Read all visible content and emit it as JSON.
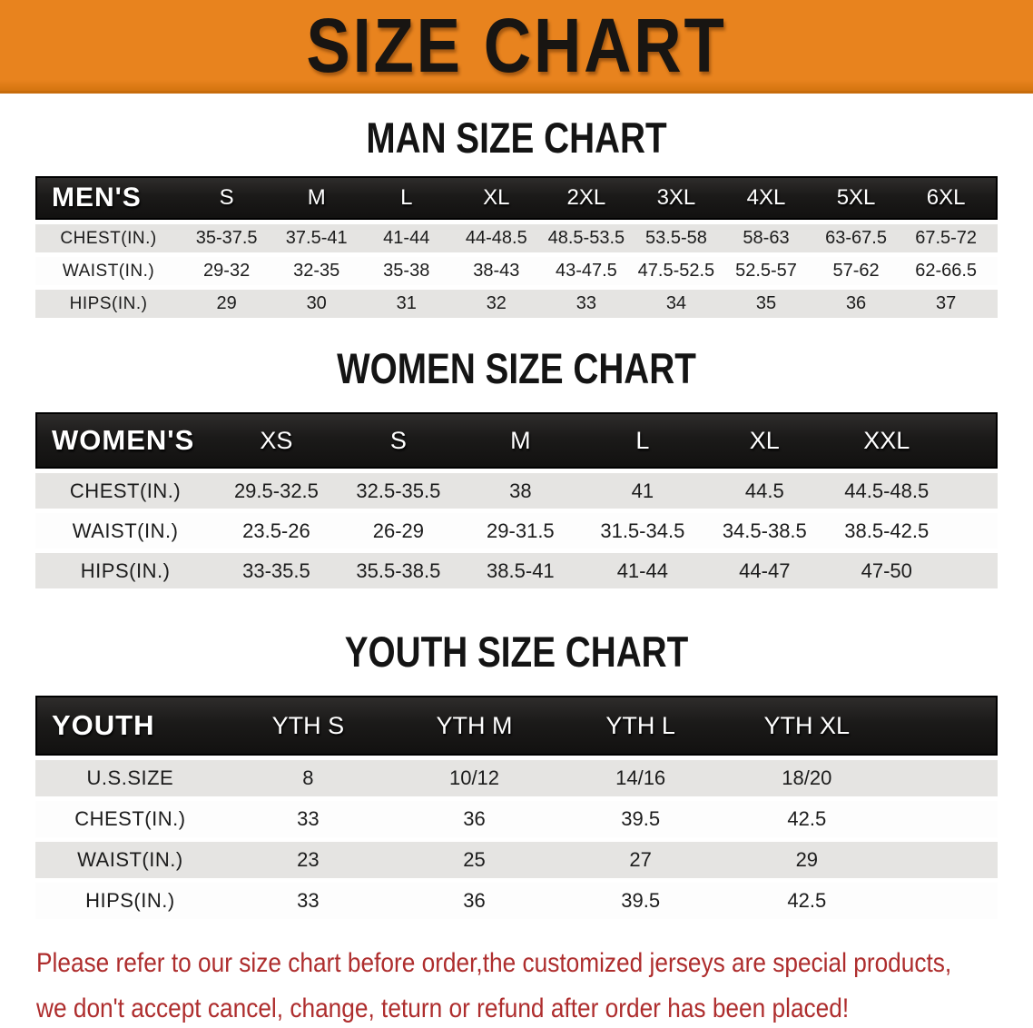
{
  "theme": {
    "banner_bg": "#E8831E",
    "banner_text": "#181512",
    "header_bar_bg": "#1B1A19",
    "header_bar_text": "#FFFFFF",
    "row_stripe_bg": "#E5E4E2",
    "row_white_bg": "#FDFDFD",
    "disclaimer_color": "#AE2D2D"
  },
  "banner": {
    "title": "SIZE CHART"
  },
  "sections": [
    {
      "key": "men",
      "title": "MAN SIZE CHART",
      "table": {
        "header_label": "MEN'S",
        "columns": [
          "S",
          "M",
          "L",
          "XL",
          "2XL",
          "3XL",
          "4XL",
          "5XL",
          "6XL"
        ],
        "rows": [
          {
            "label": "CHEST(IN.)",
            "values": [
              "35-37.5",
              "37.5-41",
              "41-44",
              "44-48.5",
              "48.5-53.5",
              "53.5-58",
              "58-63",
              "63-67.5",
              "67.5-72"
            ]
          },
          {
            "label": "WAIST(IN.)",
            "values": [
              "29-32",
              "32-35",
              "35-38",
              "38-43",
              "43-47.5",
              "47.5-52.5",
              "52.5-57",
              "57-62",
              "62-66.5"
            ]
          },
          {
            "label": "HIPS(IN.)",
            "values": [
              "29",
              "30",
              "31",
              "32",
              "33",
              "34",
              "35",
              "36",
              "37"
            ]
          }
        ]
      }
    },
    {
      "key": "women",
      "title": "WOMEN SIZE CHART",
      "table": {
        "header_label": "WOMEN'S",
        "columns": [
          "XS",
          "S",
          "M",
          "L",
          "XL",
          "XXL"
        ],
        "rows": [
          {
            "label": "CHEST(IN.)",
            "values": [
              "29.5-32.5",
              "32.5-35.5",
              "38",
              "41",
              "44.5",
              "44.5-48.5"
            ]
          },
          {
            "label": "WAIST(IN.)",
            "values": [
              "23.5-26",
              "26-29",
              "29-31.5",
              "31.5-34.5",
              "34.5-38.5",
              "38.5-42.5"
            ]
          },
          {
            "label": "HIPS(IN.)",
            "values": [
              "33-35.5",
              "35.5-38.5",
              "38.5-41",
              "41-44",
              "44-47",
              "47-50"
            ]
          }
        ]
      }
    },
    {
      "key": "youth",
      "title": "YOUTH SIZE CHART",
      "table": {
        "header_label": "YOUTH",
        "columns": [
          "YTH S",
          "YTH M",
          "YTH L",
          "YTH XL"
        ],
        "rows": [
          {
            "label": "U.S.SIZE",
            "values": [
              "8",
              "10/12",
              "14/16",
              "18/20"
            ]
          },
          {
            "label": "CHEST(IN.)",
            "values": [
              "33",
              "36",
              "39.5",
              "42.5"
            ]
          },
          {
            "label": "WAIST(IN.)",
            "values": [
              "23",
              "25",
              "27",
              "29"
            ]
          },
          {
            "label": "HIPS(IN.)",
            "values": [
              "33",
              "36",
              "39.5",
              "42.5"
            ]
          }
        ]
      }
    }
  ],
  "disclaimer": {
    "line1": "Please refer to our size chart before order,the customized jerseys are special products,",
    "line2": "we don't accept cancel, change, teturn or refund after order has been placed!"
  }
}
